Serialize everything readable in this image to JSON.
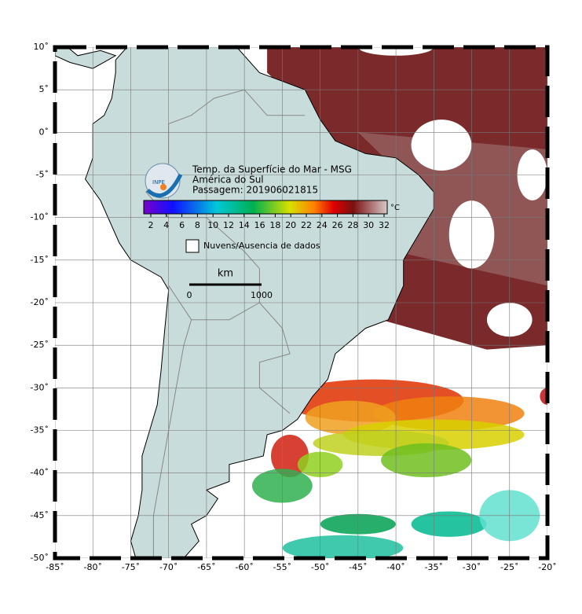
{
  "map": {
    "title_lines": [
      "Temp. da Superfície do Mar - MSG",
      "América do Sul",
      "Passagem: 201906021815"
    ],
    "logo": "INPE",
    "colorbar": {
      "ticks": [
        2,
        4,
        6,
        8,
        10,
        12,
        14,
        16,
        18,
        20,
        22,
        24,
        26,
        28,
        30,
        32
      ],
      "unit": "°C"
    },
    "legend": "Nuvens/Ausencia de dados",
    "scale": {
      "unit": "km",
      "labels": [
        0,
        1000
      ]
    },
    "xticks": [
      {
        "value": -85,
        "label": "-85˚"
      },
      {
        "value": -80,
        "label": "-80˚"
      },
      {
        "value": -75,
        "label": "-75˚"
      },
      {
        "value": -70,
        "label": "-70˚"
      },
      {
        "value": -65,
        "label": "-65˚"
      },
      {
        "value": -60,
        "label": "-60˚"
      },
      {
        "value": -55,
        "label": "-55˚"
      },
      {
        "value": -50,
        "label": "-50˚"
      },
      {
        "value": -45,
        "label": "-45˚"
      },
      {
        "value": -40,
        "label": "-40˚"
      },
      {
        "value": -35,
        "label": "-35˚"
      },
      {
        "value": -30,
        "label": "-30˚"
      },
      {
        "value": -25,
        "label": "-25˚"
      },
      {
        "value": -20,
        "label": "-20˚"
      }
    ],
    "yticks": [
      {
        "value": 10,
        "label": "10˚"
      },
      {
        "value": 5,
        "label": "5˚"
      },
      {
        "value": 0,
        "label": "0˚"
      },
      {
        "value": -5,
        "label": "-5˚"
      },
      {
        "value": -10,
        "label": "-10˚"
      },
      {
        "value": -15,
        "label": "-15˚"
      },
      {
        "value": -20,
        "label": "-20˚"
      },
      {
        "value": -25,
        "label": "-25˚"
      },
      {
        "value": -30,
        "label": "-30˚"
      },
      {
        "value": -35,
        "label": "-35˚"
      },
      {
        "value": -40,
        "label": "-40˚"
      },
      {
        "value": -45,
        "label": "-45˚"
      },
      {
        "value": -50,
        "label": "-50˚"
      }
    ]
  }
}
